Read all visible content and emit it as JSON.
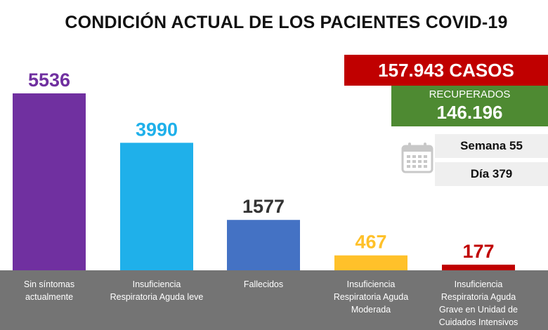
{
  "header": {
    "title": "CONDICIÓN ACTUAL DE LOS PACIENTES COVID-19"
  },
  "summary": {
    "cases": "157.943 CASOS",
    "recovered_label": "RECUPERADOS",
    "recovered_value": "146.196",
    "week": "Semana 55",
    "day": "Día 379",
    "calendar_icon": "calendar-icon"
  },
  "colors": {
    "axis_band": "#747474",
    "cases": "#c00000",
    "recovered": "#4e8a32",
    "info_box": "#efefef"
  },
  "chart_data": {
    "type": "bar",
    "title": "CONDICIÓN ACTUAL DE LOS PACIENTES COVID-19",
    "xlabel": "",
    "ylabel": "",
    "ylim": [
      0,
      5536
    ],
    "grid": false,
    "legend": "none",
    "categories": [
      [
        "Sin síntomas",
        "actualmente"
      ],
      [
        "Insuficiencia",
        "Respiratoria Aguda leve"
      ],
      [
        "Fallecidos"
      ],
      [
        "Insuficiencia",
        "Respiratoria Aguda",
        "Moderada"
      ],
      [
        "Insuficiencia",
        "Respiratoria Aguda",
        "Grave en Unidad de",
        "Cuidados Intensivos"
      ]
    ],
    "values": [
      5536,
      3990,
      1577,
      467,
      177
    ],
    "bar_colors": [
      "#7030a0",
      "#1fb0ea",
      "#4472c4",
      "#ffc12a",
      "#c00000"
    ],
    "value_label_colors": [
      "#7030a0",
      "#1fb0ea",
      "#333333",
      "#ffc12a",
      "#c00000"
    ]
  }
}
